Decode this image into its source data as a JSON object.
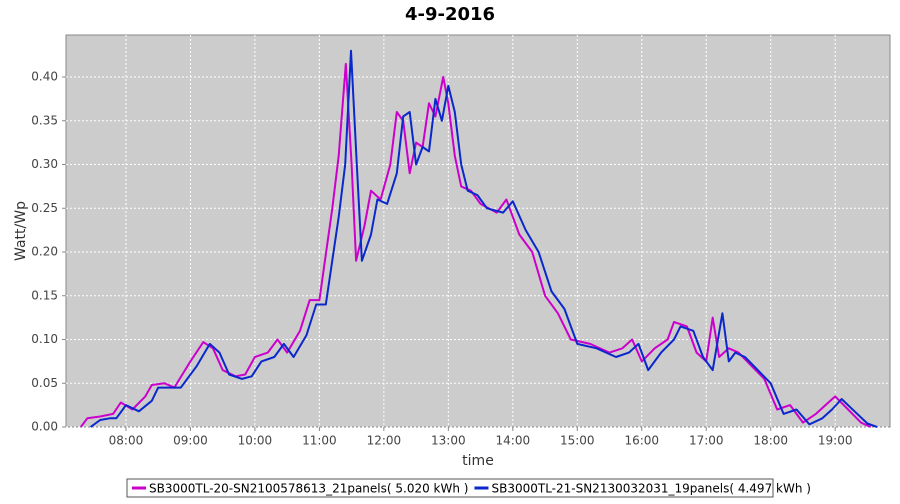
{
  "chart_data": {
    "type": "line",
    "title": "4-9-2016",
    "x_label": "time",
    "y_label": "Watt/Wp",
    "xlim": [
      7.07,
      19.85
    ],
    "ylim": [
      0,
      0.448
    ],
    "xticks": [
      {
        "value": 8,
        "label": "08:00"
      },
      {
        "value": 9,
        "label": "09:00"
      },
      {
        "value": 10,
        "label": "10:00"
      },
      {
        "value": 11,
        "label": "11:00"
      },
      {
        "value": 12,
        "label": "12:00"
      },
      {
        "value": 13,
        "label": "13:00"
      },
      {
        "value": 14,
        "label": "14:00"
      },
      {
        "value": 15,
        "label": "15:00"
      },
      {
        "value": 16,
        "label": "16:00"
      },
      {
        "value": 17,
        "label": "17:00"
      },
      {
        "value": 18,
        "label": "18:00"
      },
      {
        "value": 19,
        "label": "19:00"
      }
    ],
    "yticks": [
      {
        "value": 0,
        "label": "0.00"
      },
      {
        "value": 0.05,
        "label": "0.05"
      },
      {
        "value": 0.1,
        "label": "0.10"
      },
      {
        "value": 0.15,
        "label": "0.15"
      },
      {
        "value": 0.2,
        "label": "0.20"
      },
      {
        "value": 0.25,
        "label": "0.25"
      },
      {
        "value": 0.3,
        "label": "0.30"
      },
      {
        "value": 0.35,
        "label": "0.35"
      },
      {
        "value": 0.4,
        "label": "0.40"
      }
    ],
    "grid": true,
    "series": [
      {
        "name": "SB3000TL-20-SN2100578613_21panels( 5.020 kWh )",
        "color": "#cc00cc",
        "x": [
          7.3,
          7.4,
          7.6,
          7.8,
          7.92,
          8.1,
          8.3,
          8.4,
          8.6,
          8.75,
          9.0,
          9.2,
          9.35,
          9.5,
          9.7,
          9.85,
          10.0,
          10.2,
          10.35,
          10.5,
          10.7,
          10.85,
          11.0,
          11.2,
          11.3,
          11.41,
          11.5,
          11.57,
          11.7,
          11.8,
          11.95,
          12.1,
          12.2,
          12.3,
          12.4,
          12.5,
          12.6,
          12.7,
          12.8,
          12.92,
          13.0,
          13.1,
          13.2,
          13.35,
          13.5,
          13.75,
          13.9,
          14.1,
          14.3,
          14.5,
          14.7,
          14.9,
          15.2,
          15.5,
          15.7,
          15.85,
          16.0,
          16.2,
          16.4,
          16.5,
          16.7,
          16.85,
          17.0,
          17.1,
          17.2,
          17.35,
          17.5,
          17.7,
          17.9,
          18.1,
          18.3,
          18.5,
          18.7,
          18.85,
          19.0,
          19.2,
          19.4,
          19.55
        ],
        "values": [
          0,
          0.01,
          0.012,
          0.015,
          0.028,
          0.02,
          0.035,
          0.048,
          0.05,
          0.045,
          0.075,
          0.097,
          0.09,
          0.065,
          0.058,
          0.06,
          0.08,
          0.085,
          0.1,
          0.085,
          0.11,
          0.145,
          0.145,
          0.25,
          0.31,
          0.415,
          0.3,
          0.19,
          0.23,
          0.27,
          0.26,
          0.3,
          0.36,
          0.35,
          0.29,
          0.325,
          0.32,
          0.37,
          0.355,
          0.4,
          0.37,
          0.31,
          0.275,
          0.27,
          0.255,
          0.245,
          0.26,
          0.22,
          0.2,
          0.15,
          0.13,
          0.1,
          0.095,
          0.085,
          0.09,
          0.1,
          0.075,
          0.09,
          0.1,
          0.12,
          0.115,
          0.085,
          0.075,
          0.125,
          0.08,
          0.09,
          0.085,
          0.07,
          0.055,
          0.02,
          0.025,
          0.005,
          0.015,
          0.025,
          0.035,
          0.02,
          0.005,
          0
        ]
      },
      {
        "name": "SB3000TL-21-SN2130032031_19panels( 4.497 kWh )",
        "color": "#0a28cc",
        "x": [
          7.45,
          7.6,
          7.75,
          7.85,
          8.0,
          8.2,
          8.4,
          8.5,
          8.7,
          8.85,
          9.1,
          9.3,
          9.45,
          9.6,
          9.8,
          9.95,
          10.1,
          10.3,
          10.45,
          10.6,
          10.8,
          10.95,
          11.1,
          11.3,
          11.4,
          11.49,
          11.58,
          11.66,
          11.8,
          11.9,
          12.05,
          12.2,
          12.3,
          12.4,
          12.5,
          12.6,
          12.7,
          12.8,
          12.9,
          13.0,
          13.1,
          13.2,
          13.3,
          13.45,
          13.6,
          13.85,
          14.0,
          14.2,
          14.4,
          14.6,
          14.8,
          15.0,
          15.3,
          15.6,
          15.8,
          15.95,
          16.1,
          16.3,
          16.5,
          16.6,
          16.8,
          16.95,
          17.1,
          17.25,
          17.35,
          17.45,
          17.6,
          17.8,
          18.0,
          18.2,
          18.4,
          18.6,
          18.8,
          18.95,
          19.1,
          19.3,
          19.5,
          19.65
        ],
        "values": [
          0,
          0.008,
          0.01,
          0.01,
          0.025,
          0.018,
          0.03,
          0.045,
          0.045,
          0.045,
          0.07,
          0.095,
          0.085,
          0.06,
          0.055,
          0.058,
          0.075,
          0.08,
          0.095,
          0.08,
          0.105,
          0.14,
          0.14,
          0.24,
          0.3,
          0.43,
          0.3,
          0.19,
          0.22,
          0.26,
          0.255,
          0.29,
          0.355,
          0.36,
          0.3,
          0.32,
          0.315,
          0.375,
          0.35,
          0.39,
          0.36,
          0.3,
          0.27,
          0.265,
          0.25,
          0.245,
          0.258,
          0.225,
          0.2,
          0.155,
          0.135,
          0.095,
          0.09,
          0.08,
          0.085,
          0.095,
          0.065,
          0.085,
          0.1,
          0.115,
          0.11,
          0.08,
          0.065,
          0.13,
          0.075,
          0.085,
          0.08,
          0.065,
          0.05,
          0.015,
          0.02,
          0.003,
          0.01,
          0.02,
          0.032,
          0.018,
          0.004,
          0
        ]
      }
    ]
  }
}
